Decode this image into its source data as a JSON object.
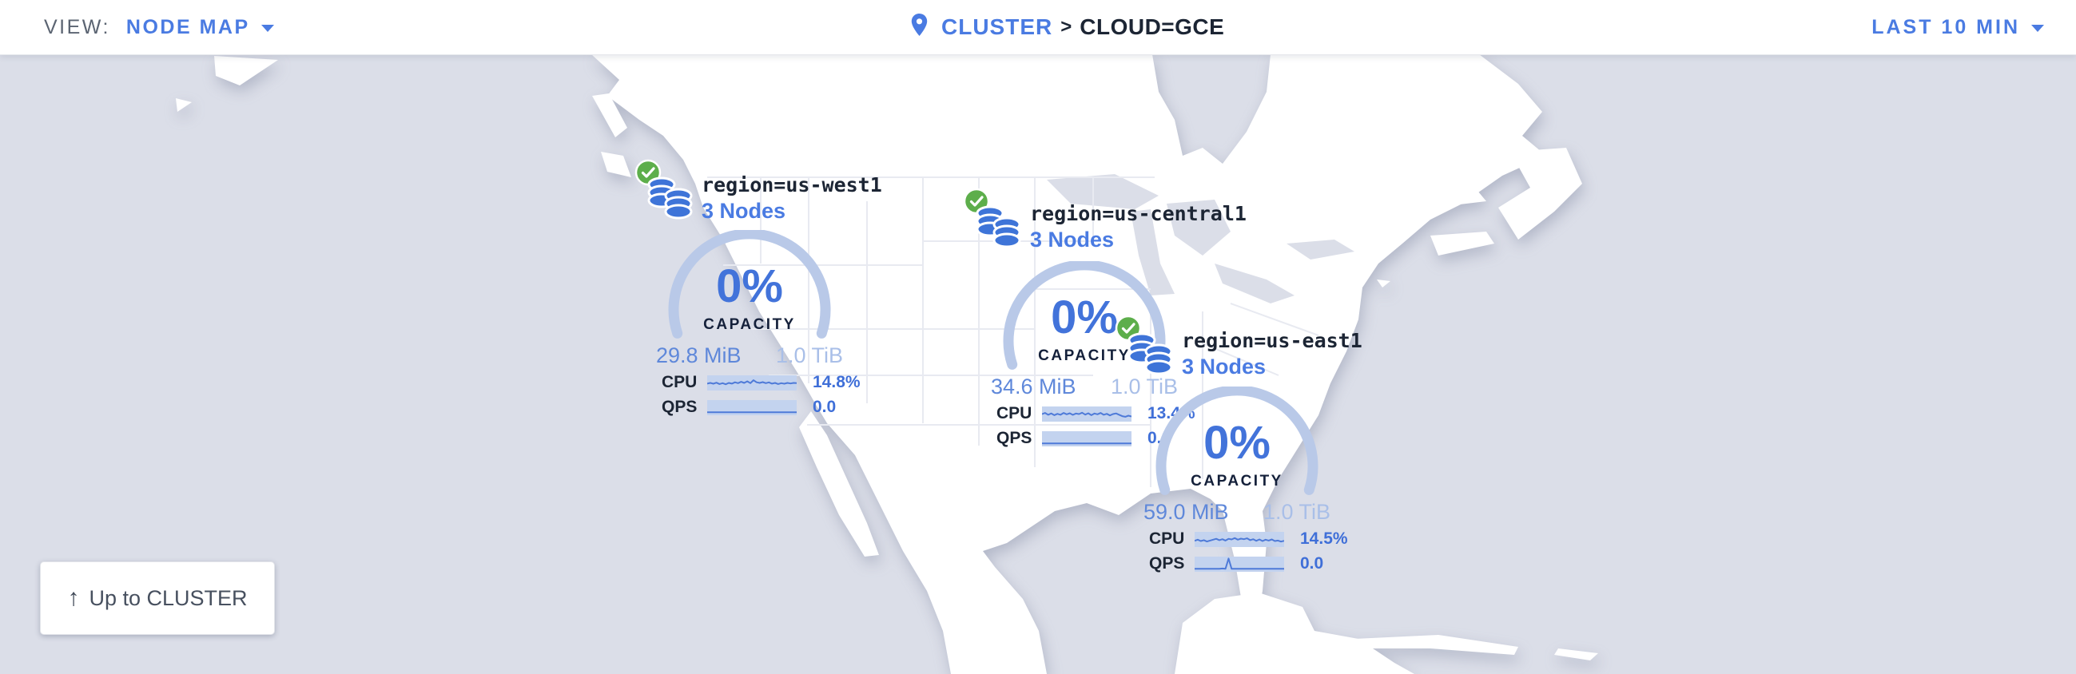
{
  "header": {
    "view_label": "VIEW:",
    "view_value": "NODE MAP",
    "breadcrumb_root": "CLUSTER",
    "breadcrumb_sep": ">",
    "breadcrumb_current": "CLOUD=GCE",
    "time_range": "LAST 10 MIN"
  },
  "map": {
    "up_button_label": "Up to CLUSTER",
    "regions": [
      {
        "name": "region=us-west1",
        "nodes": "3 Nodes",
        "capacity_pct": "0%",
        "capacity_label": "CAPACITY",
        "used": "29.8 MiB",
        "total": "1.0 TiB",
        "cpu_label": "CPU",
        "cpu_value": "14.8%",
        "qps_label": "QPS",
        "qps_value": "0.0",
        "cpu_spark": [
          0.55,
          0.5,
          0.56,
          0.48,
          0.58,
          0.52,
          0.6,
          0.5,
          0.55,
          0.45,
          0.52,
          0.42,
          0.5,
          0.38,
          0.52,
          0.3,
          0.45,
          0.5,
          0.44,
          0.52,
          0.46,
          0.55,
          0.5,
          0.58,
          0.52,
          0.56,
          0.5,
          0.54,
          0.5,
          0.52
        ],
        "qps_spark": [
          0.84,
          0.84,
          0.84,
          0.84,
          0.84,
          0.84,
          0.84,
          0.84,
          0.84,
          0.84,
          0.84,
          0.84,
          0.84,
          0.84,
          0.84,
          0.84,
          0.84,
          0.84,
          0.84,
          0.84,
          0.84,
          0.84,
          0.84,
          0.84,
          0.84,
          0.84,
          0.84,
          0.84,
          0.84,
          0.84
        ]
      },
      {
        "name": "region=us-central1",
        "nodes": "3 Nodes",
        "capacity_pct": "0%",
        "capacity_label": "CAPACITY",
        "used": "34.6 MiB",
        "total": "1.0 TiB",
        "cpu_label": "CPU",
        "cpu_value": "13.4%",
        "qps_label": "QPS",
        "qps_value": "0.0",
        "cpu_spark": [
          0.5,
          0.42,
          0.55,
          0.45,
          0.58,
          0.48,
          0.55,
          0.42,
          0.52,
          0.44,
          0.56,
          0.46,
          0.5,
          0.4,
          0.54,
          0.44,
          0.58,
          0.46,
          0.52,
          0.42,
          0.55,
          0.48,
          0.6,
          0.5,
          0.45,
          0.55,
          0.65,
          0.7,
          0.62,
          0.68
        ],
        "qps_spark": [
          0.84,
          0.84,
          0.84,
          0.84,
          0.84,
          0.84,
          0.84,
          0.84,
          0.84,
          0.84,
          0.84,
          0.84,
          0.84,
          0.84,
          0.84,
          0.84,
          0.84,
          0.84,
          0.84,
          0.84,
          0.84,
          0.84,
          0.84,
          0.84,
          0.84,
          0.84,
          0.84,
          0.84,
          0.84,
          0.84
        ]
      },
      {
        "name": "region=us-east1",
        "nodes": "3 Nodes",
        "capacity_pct": "0%",
        "capacity_label": "CAPACITY",
        "used": "59.0 MiB",
        "total": "1.0 TiB",
        "cpu_label": "CPU",
        "cpu_value": "14.5%",
        "qps_label": "QPS",
        "qps_value": "0.0",
        "cpu_spark": [
          0.6,
          0.52,
          0.62,
          0.55,
          0.65,
          0.58,
          0.52,
          0.45,
          0.55,
          0.48,
          0.58,
          0.45,
          0.5,
          0.4,
          0.52,
          0.44,
          0.48,
          0.42,
          0.55,
          0.48,
          0.6,
          0.5,
          0.62,
          0.52,
          0.58,
          0.5,
          0.62,
          0.58,
          0.66,
          0.6
        ],
        "qps_spark": [
          0.84,
          0.84,
          0.84,
          0.84,
          0.84,
          0.84,
          0.84,
          0.84,
          0.84,
          0.82,
          0.84,
          0.08,
          0.84,
          0.84,
          0.84,
          0.84,
          0.84,
          0.84,
          0.84,
          0.84,
          0.84,
          0.84,
          0.84,
          0.84,
          0.84,
          0.84,
          0.84,
          0.84,
          0.84,
          0.84
        ]
      }
    ]
  },
  "colors": {
    "accent_blue": "#4a7be2",
    "value_blue": "#3f6fd8",
    "dark_text": "#1c2534",
    "muted_gray": "#5b6472",
    "green_ok": "#5dae4b",
    "arc_blue": "#b9c9e8",
    "spark_band": "#c3d3ef",
    "spark_line": "#4e7ad8",
    "used_blue": "#5f88da",
    "total_blue": "#a9bfe8",
    "ocean": "#dbdee8",
    "land": "#ffffff"
  }
}
